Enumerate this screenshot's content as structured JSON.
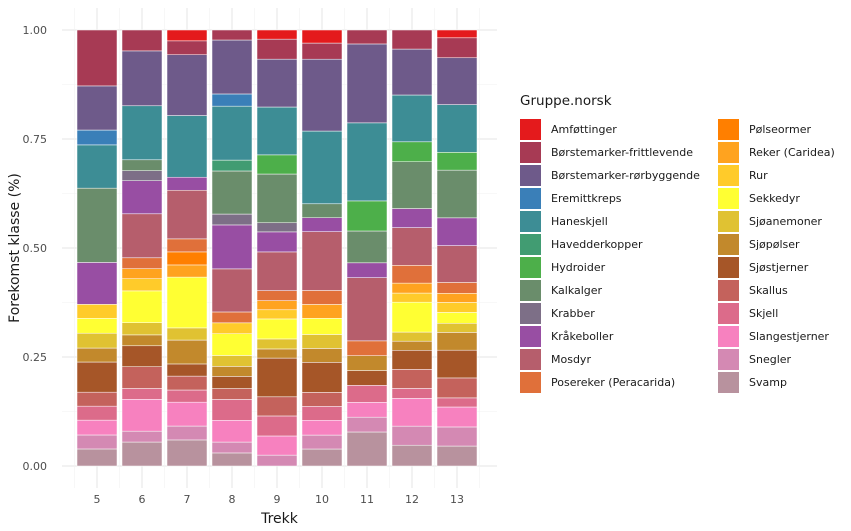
{
  "chart_data": {
    "type": "bar",
    "stacked": true,
    "position": "fill",
    "title": "",
    "xlabel": "Trekk",
    "ylabel": "Forekomst klasse (%)",
    "ylim": [
      0,
      1
    ],
    "yticks": [
      "0.00",
      "0.25",
      "0.50",
      "0.75",
      "1.00"
    ],
    "ytick_values": [
      0,
      0.25,
      0.5,
      0.75,
      1.0
    ],
    "grid": true,
    "legend_position": "right",
    "legend_title": "Gruppe.norsk",
    "categories": [
      "5",
      "6",
      "7",
      "8",
      "9",
      "10",
      "11",
      "12",
      "13"
    ],
    "series": [
      {
        "name": "Amføttinger",
        "color": "#E41A1C",
        "values": [
          0,
          0,
          0.025,
          0,
          0.021,
          0.03,
          0,
          0,
          0.018
        ]
      },
      {
        "name": "Børstemarker-frittlevende",
        "color": "#A73A54",
        "values": [
          0.128,
          0.048,
          0.032,
          0.023,
          0.046,
          0.037,
          0.032,
          0.044,
          0.046
        ]
      },
      {
        "name": "Børstemarker-rørbyggende",
        "color": "#6E5A8A",
        "values": [
          0.101,
          0.126,
          0.14,
          0.124,
          0.11,
          0.165,
          0.181,
          0.106,
          0.108
        ]
      },
      {
        "name": "Eremittkreps",
        "color": "#3A7FB8",
        "values": [
          0.034,
          0,
          0,
          0.028,
          0,
          0,
          0,
          0,
          0
        ]
      },
      {
        "name": "Haneskjell",
        "color": "#3D8D95",
        "values": [
          0.099,
          0.124,
          0.142,
          0.124,
          0.11,
          0.167,
          0.179,
          0.108,
          0.11
        ]
      },
      {
        "name": "Havedderkopper",
        "color": "#419C72",
        "values": [
          0,
          0,
          0,
          0.025,
          0,
          0,
          0,
          0,
          0
        ]
      },
      {
        "name": "Hydroider",
        "color": "#4DAF4A",
        "values": [
          0,
          0,
          0,
          0,
          0.044,
          0,
          0.069,
          0.046,
          0.041
        ]
      },
      {
        "name": "Kalkalger",
        "color": "#6A8D6B",
        "values": [
          0.17,
          0.025,
          0,
          0.099,
          0.112,
          0.032,
          0.073,
          0.108,
          0.11
        ]
      },
      {
        "name": "Krabber",
        "color": "#7D6F87",
        "values": [
          0,
          0.023,
          0,
          0.025,
          0.021,
          0,
          0,
          0,
          0
        ]
      },
      {
        "name": "Kråkeboller",
        "color": "#984EA3",
        "values": [
          0.096,
          0.076,
          0.03,
          0.101,
          0.046,
          0.032,
          0.034,
          0.044,
          0.064
        ]
      },
      {
        "name": "Mosdyr",
        "color": "#B65E6C",
        "values": [
          0,
          0.101,
          0.112,
          0.099,
          0.089,
          0.135,
          0.145,
          0.087,
          0.085
        ]
      },
      {
        "name": "Posereker (Peracarida)",
        "color": "#E0703A",
        "values": [
          0,
          0.025,
          0.03,
          0.025,
          0.023,
          0.032,
          0.034,
          0.041,
          0.025
        ]
      },
      {
        "name": "Pølseormer",
        "color": "#FF7F00",
        "values": [
          0,
          0,
          0.03,
          0,
          0,
          0,
          0,
          0,
          0
        ]
      },
      {
        "name": "Reker (Caridea)",
        "color": "#FFA31F",
        "values": [
          0,
          0.023,
          0.028,
          0,
          0.021,
          0.032,
          0,
          0.023,
          0.021
        ]
      },
      {
        "name": "Rur",
        "color": "#FFCB2A",
        "values": [
          0.032,
          0.028,
          0,
          0.025,
          0.021,
          0,
          0,
          0.021,
          0.023
        ]
      },
      {
        "name": "Sekkedyr",
        "color": "#FFFF33",
        "values": [
          0.034,
          0.073,
          0.117,
          0.05,
          0.046,
          0.037,
          0,
          0.069,
          0.025
        ]
      },
      {
        "name": "Sjøanemoner",
        "color": "#E0C232",
        "values": [
          0.034,
          0.028,
          0.028,
          0.025,
          0.023,
          0.032,
          0,
          0.021,
          0.021
        ]
      },
      {
        "name": "Sjøpølser",
        "color": "#C2892C",
        "values": [
          0.032,
          0.025,
          0.055,
          0.023,
          0.021,
          0.032,
          0.034,
          0.021,
          0.041
        ]
      },
      {
        "name": "Sjøstjerner",
        "color": "#A65628",
        "values": [
          0.069,
          0.048,
          0.028,
          0.028,
          0.089,
          0.069,
          0.034,
          0.044,
          0.064
        ]
      },
      {
        "name": "Skallus",
        "color": "#C4625C",
        "values": [
          0.032,
          0.05,
          0.032,
          0.025,
          0.044,
          0.032,
          0,
          0.044,
          0.046
        ]
      },
      {
        "name": "Skjell",
        "color": "#DC6B8A",
        "values": [
          0.032,
          0.025,
          0.028,
          0.048,
          0.046,
          0.032,
          0.039,
          0.023,
          0.021
        ]
      },
      {
        "name": "Slangestjerner",
        "color": "#F781BF",
        "values": [
          0.034,
          0.073,
          0.055,
          0.05,
          0.044,
          0.034,
          0.034,
          0.064,
          0.046
        ]
      },
      {
        "name": "Snegler",
        "color": "#D489B3",
        "values": [
          0.032,
          0.025,
          0.032,
          0.025,
          0.025,
          0.032,
          0.034,
          0.044,
          0.044
        ]
      },
      {
        "name": "Svamp",
        "color": "#B8929E",
        "values": [
          0.039,
          0.055,
          0.06,
          0.03,
          0,
          0.039,
          0.078,
          0.048,
          0.046
        ]
      }
    ]
  },
  "legend": {
    "title": "Gruppe.norsk",
    "col1": [
      "Amføttinger",
      "Børstemarker-frittlevende",
      "Børstemarker-rørbyggende",
      "Eremittkreps",
      "Haneskjell",
      "Havedderkopper",
      "Hydroider",
      "Kalkalger",
      "Krabber",
      "Kråkeboller",
      "Mosdyr",
      "Posereker (Peracarida)"
    ],
    "col2": [
      "Pølseormer",
      "Reker (Caridea)",
      "Rur",
      "Sekkedyr",
      "Sjøanemoner",
      "Sjøpølser",
      "Sjøstjerner",
      "Skallus",
      "Skjell",
      "Slangestjerner",
      "Snegler",
      "Svamp"
    ]
  }
}
